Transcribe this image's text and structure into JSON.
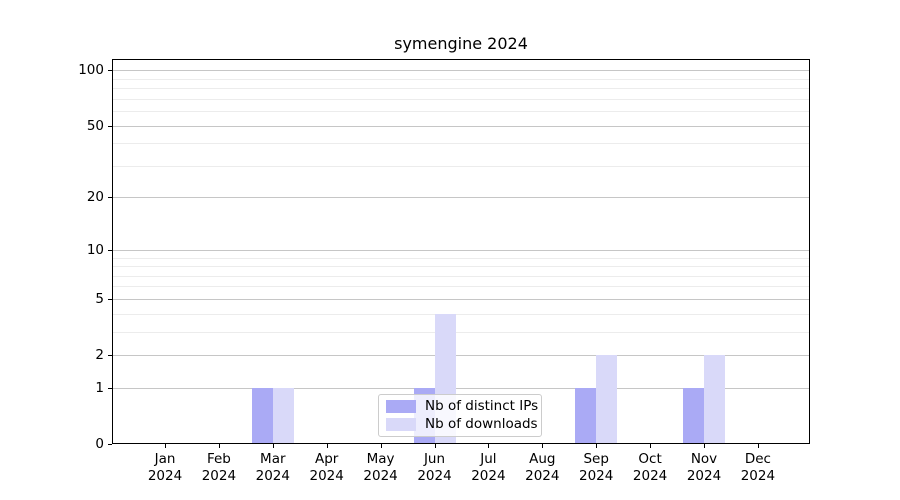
{
  "chart_data": {
    "type": "bar",
    "title": "symengine 2024",
    "categories": [
      "Jan 2024",
      "Feb 2024",
      "Mar 2024",
      "Apr 2024",
      "May 2024",
      "Jun 2024",
      "Jul 2024",
      "Aug 2024",
      "Sep 2024",
      "Oct 2024",
      "Nov 2024",
      "Dec 2024"
    ],
    "series": [
      {
        "name": "Nb of distinct IPs",
        "color": "#aaaaf5",
        "values": [
          0,
          0,
          1,
          0,
          0,
          1,
          0,
          0,
          1,
          0,
          1,
          0
        ]
      },
      {
        "name": "Nb of downloads",
        "color": "#d9d9f9",
        "values": [
          0,
          0,
          1,
          0,
          0,
          4,
          0,
          0,
          2,
          0,
          2,
          0
        ]
      }
    ],
    "y_axis": {
      "scale": "log1p",
      "major_ticks": [
        0,
        1,
        2,
        5,
        10,
        20,
        50,
        100
      ],
      "minor_ticks": [
        3,
        4,
        6,
        7,
        8,
        9,
        30,
        40,
        60,
        70,
        80,
        90
      ],
      "range_max": 115
    },
    "legend": {
      "position": "lower center"
    },
    "grid": true,
    "background": "#ffffff"
  }
}
